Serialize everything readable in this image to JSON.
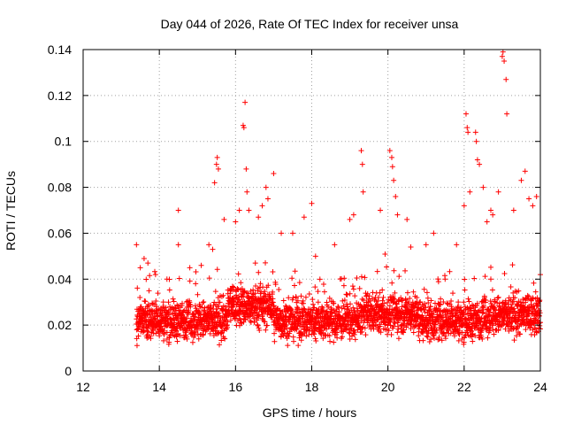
{
  "chart_data": {
    "type": "scatter",
    "title": "Day 044 of 2026, Rate Of TEC Index for receiver unsa",
    "xlabel": "GPS time / hours",
    "ylabel": "ROTI / TECUs",
    "xlim": [
      12,
      24
    ],
    "ylim": [
      0,
      0.14
    ],
    "x_ticks": [
      12,
      14,
      16,
      18,
      20,
      22,
      24
    ],
    "x_tick_labels": [
      "12",
      "14",
      "16",
      "18",
      "20",
      "22",
      "24"
    ],
    "y_ticks": [
      0,
      0.02,
      0.04,
      0.06,
      0.08,
      0.1,
      0.12,
      0.14
    ],
    "y_tick_labels": [
      "0",
      "0.02",
      "0.04",
      "0.06",
      "0.08",
      "0.1",
      "0.12",
      "0.14"
    ],
    "grid": true,
    "marker": "+",
    "color": "#ff0000",
    "baseline_hint": "dense band of ROTI values mostly 0.005-0.045 TECU/s from 13.4 h to 24 h",
    "series": [
      {
        "name": "ROTI",
        "points": [
          [
            13.4,
            0.055
          ],
          [
            13.5,
            0.045
          ],
          [
            13.6,
            0.049
          ],
          [
            13.7,
            0.047
          ],
          [
            13.9,
            0.042
          ],
          [
            14.2,
            0.04
          ],
          [
            14.5,
            0.07
          ],
          [
            14.5,
            0.055
          ],
          [
            14.8,
            0.045
          ],
          [
            15.1,
            0.046
          ],
          [
            15.3,
            0.055
          ],
          [
            15.4,
            0.053
          ],
          [
            15.45,
            0.082
          ],
          [
            15.5,
            0.09
          ],
          [
            15.52,
            0.093
          ],
          [
            15.55,
            0.088
          ],
          [
            15.7,
            0.066
          ],
          [
            16.0,
            0.065
          ],
          [
            16.1,
            0.07
          ],
          [
            16.2,
            0.107
          ],
          [
            16.22,
            0.106
          ],
          [
            16.25,
            0.117
          ],
          [
            16.28,
            0.088
          ],
          [
            16.3,
            0.078
          ],
          [
            16.35,
            0.07
          ],
          [
            16.6,
            0.067
          ],
          [
            16.7,
            0.072
          ],
          [
            16.8,
            0.08
          ],
          [
            16.85,
            0.075
          ],
          [
            17.0,
            0.086
          ],
          [
            17.2,
            0.06
          ],
          [
            17.5,
            0.06
          ],
          [
            17.8,
            0.067
          ],
          [
            18.0,
            0.073
          ],
          [
            18.1,
            0.05
          ],
          [
            18.6,
            0.055
          ],
          [
            19.0,
            0.066
          ],
          [
            19.1,
            0.068
          ],
          [
            19.3,
            0.096
          ],
          [
            19.33,
            0.09
          ],
          [
            19.35,
            0.078
          ],
          [
            19.8,
            0.07
          ],
          [
            20.05,
            0.096
          ],
          [
            20.1,
            0.093
          ],
          [
            20.12,
            0.089
          ],
          [
            20.15,
            0.083
          ],
          [
            20.2,
            0.076
          ],
          [
            20.25,
            0.068
          ],
          [
            20.5,
            0.066
          ],
          [
            20.6,
            0.054
          ],
          [
            21.0,
            0.055
          ],
          [
            21.2,
            0.06
          ],
          [
            21.5,
            0.04
          ],
          [
            21.8,
            0.055
          ],
          [
            22.0,
            0.072
          ],
          [
            22.05,
            0.112
          ],
          [
            22.08,
            0.106
          ],
          [
            22.1,
            0.104
          ],
          [
            22.15,
            0.078
          ],
          [
            22.3,
            0.104
          ],
          [
            22.32,
            0.1
          ],
          [
            22.35,
            0.092
          ],
          [
            22.4,
            0.09
          ],
          [
            22.5,
            0.08
          ],
          [
            22.6,
            0.065
          ],
          [
            22.7,
            0.07
          ],
          [
            22.75,
            0.068
          ],
          [
            22.9,
            0.078
          ],
          [
            23.0,
            0.137
          ],
          [
            23.02,
            0.139
          ],
          [
            23.05,
            0.135
          ],
          [
            23.1,
            0.127
          ],
          [
            23.12,
            0.112
          ],
          [
            23.3,
            0.07
          ],
          [
            23.5,
            0.083
          ],
          [
            23.6,
            0.087
          ],
          [
            23.7,
            0.075
          ],
          [
            23.8,
            0.072
          ],
          [
            23.9,
            0.076
          ],
          [
            24.0,
            0.042
          ]
        ]
      }
    ]
  }
}
